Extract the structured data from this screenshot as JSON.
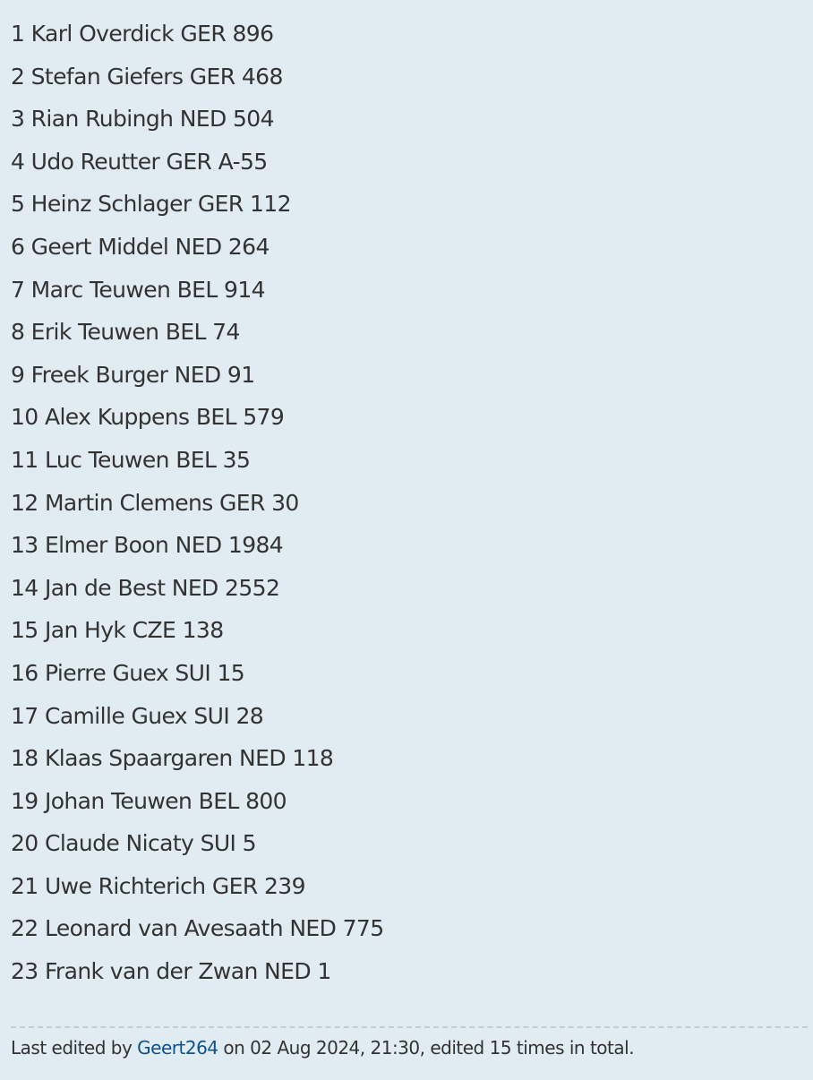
{
  "post": {
    "lines": [
      "1 Karl Overdick GER 896",
      "2 Stefan Giefers GER 468",
      "3 Rian Rubingh NED 504",
      "4 Udo Reutter GER A-55",
      "5 Heinz Schlager GER 112",
      "6 Geert Middel NED 264",
      "7 Marc Teuwen BEL 914",
      "8 Erik Teuwen BEL 74",
      "9 Freek Burger NED 91",
      "10 Alex Kuppens BEL 579",
      "11 Luc Teuwen BEL 35",
      "12 Martin Clemens GER 30",
      "13 Elmer Boon NED 1984",
      "14 Jan de Best NED 2552",
      "15 Jan Hyk CZE 138",
      "16 Pierre Guex SUI 15",
      "17 Camille Guex SUI 28",
      "18 Klaas Spaargaren NED 118",
      "19 Johan Teuwen BEL 800",
      "20 Claude Nicaty SUI 5",
      "21 Uwe Richterich GER 239",
      "22 Leonard van Avesaath NED 775",
      "23 Frank van der Zwan NED 1"
    ]
  },
  "edit_notice": {
    "prefix": "Last edited by ",
    "user": "Geert264",
    "suffix": " on 02 Aug 2024, 21:30, edited 15 times in total."
  },
  "colors": {
    "background": "#e1ebf2",
    "text": "#333333",
    "link": "#105289"
  }
}
